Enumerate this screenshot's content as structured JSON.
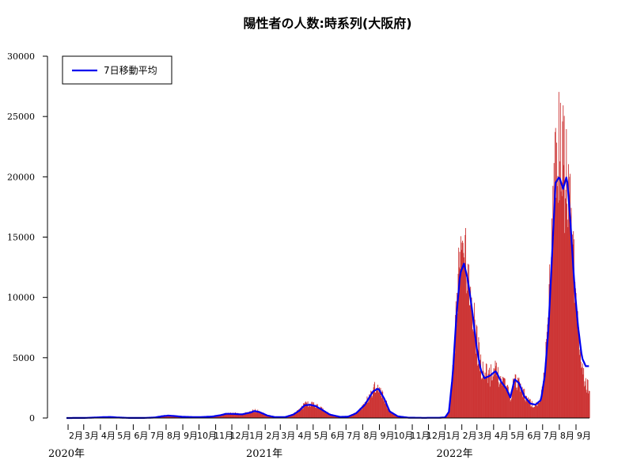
{
  "chart_data": {
    "type": "bar",
    "title": "陽性者の人数:時系列(大阪府)",
    "xlabel": "",
    "ylabel": "",
    "ylim": [
      0,
      30000
    ],
    "yticks": [
      0,
      5000,
      10000,
      15000,
      20000,
      25000,
      30000
    ],
    "x_range": [
      "2020-01-29",
      "2022-09-26"
    ],
    "month_ticks": [
      "2月",
      "3月",
      "4月",
      "5月",
      "6月",
      "7月",
      "8月",
      "9月",
      "10月",
      "11月",
      "12月",
      "1月",
      "2月",
      "3月",
      "4月",
      "5月",
      "6月",
      "7月",
      "8月",
      "9月",
      "10月",
      "11月",
      "12月",
      "1月",
      "2月",
      "3月",
      "4月",
      "5月",
      "6月",
      "7月",
      "8月",
      "9月"
    ],
    "year_labels": [
      "2020年",
      "2021年",
      "2022年"
    ],
    "grid": false,
    "legend": {
      "placement": "top-left",
      "entries": [
        "7日移動平均"
      ]
    },
    "colors": {
      "bars": "#cc3333",
      "average_line": "#0000ee"
    },
    "series": [
      {
        "name": "",
        "kind": "daily-bars",
        "points": [
          [
            "2020-01-29",
            0
          ],
          [
            "2020-03-01",
            20
          ],
          [
            "2020-04-10",
            80
          ],
          [
            "2020-04-20",
            90
          ],
          [
            "2020-05-05",
            40
          ],
          [
            "2020-05-25",
            5
          ],
          [
            "2020-06-20",
            5
          ],
          [
            "2020-07-10",
            40
          ],
          [
            "2020-07-25",
            160
          ],
          [
            "2020-08-05",
            230
          ],
          [
            "2020-08-15",
            180
          ],
          [
            "2020-09-01",
            110
          ],
          [
            "2020-10-01",
            80
          ],
          [
            "2020-10-25",
            130
          ],
          [
            "2020-11-10",
            250
          ],
          [
            "2020-11-20",
            400
          ],
          [
            "2020-12-05",
            380
          ],
          [
            "2020-12-20",
            330
          ],
          [
            "2021-01-05",
            500
          ],
          [
            "2021-01-12",
            650
          ],
          [
            "2021-01-22",
            520
          ],
          [
            "2021-02-05",
            210
          ],
          [
            "2021-02-20",
            70
          ],
          [
            "2021-03-10",
            80
          ],
          [
            "2021-03-25",
            300
          ],
          [
            "2021-04-05",
            650
          ],
          [
            "2021-04-15",
            1150
          ],
          [
            "2021-04-25",
            1200
          ],
          [
            "2021-05-05",
            1100
          ],
          [
            "2021-05-15",
            800
          ],
          [
            "2021-06-01",
            300
          ],
          [
            "2021-06-20",
            90
          ],
          [
            "2021-07-05",
            120
          ],
          [
            "2021-07-20",
            420
          ],
          [
            "2021-08-05",
            1200
          ],
          [
            "2021-08-20",
            2400
          ],
          [
            "2021-08-30",
            2600
          ],
          [
            "2021-09-10",
            1700
          ],
          [
            "2021-09-20",
            600
          ],
          [
            "2021-10-05",
            150
          ],
          [
            "2021-10-25",
            30
          ],
          [
            "2021-11-20",
            15
          ],
          [
            "2021-12-20",
            20
          ],
          [
            "2022-01-01",
            60
          ],
          [
            "2022-01-08",
            600
          ],
          [
            "2022-01-15",
            4000
          ],
          [
            "2022-01-22",
            9500
          ],
          [
            "2022-01-29",
            13500
          ],
          [
            "2022-02-05",
            14000
          ],
          [
            "2022-02-12",
            11500
          ],
          [
            "2022-02-20",
            9500
          ],
          [
            "2022-02-28",
            6500
          ],
          [
            "2022-03-08",
            4500
          ],
          [
            "2022-03-15",
            3800
          ],
          [
            "2022-03-25",
            3600
          ],
          [
            "2022-04-05",
            4000
          ],
          [
            "2022-04-15",
            3200
          ],
          [
            "2022-04-25",
            2600
          ],
          [
            "2022-05-02",
            1800
          ],
          [
            "2022-05-10",
            3300
          ],
          [
            "2022-05-18",
            3000
          ],
          [
            "2022-05-28",
            2000
          ],
          [
            "2022-06-08",
            1300
          ],
          [
            "2022-06-18",
            1100
          ],
          [
            "2022-06-28",
            1600
          ],
          [
            "2022-07-05",
            4000
          ],
          [
            "2022-07-12",
            8500
          ],
          [
            "2022-07-18",
            14500
          ],
          [
            "2022-07-25",
            22500
          ],
          [
            "2022-08-01",
            23000
          ],
          [
            "2022-08-08",
            21500
          ],
          [
            "2022-08-15",
            20500
          ],
          [
            "2022-08-22",
            17000
          ],
          [
            "2022-08-29",
            12500
          ],
          [
            "2022-09-05",
            7000
          ],
          [
            "2022-09-12",
            4200
          ],
          [
            "2022-09-19",
            3000
          ],
          [
            "2022-09-24",
            2600
          ]
        ]
      },
      {
        "name": "7日移動平均",
        "kind": "line",
        "points": [
          [
            "2020-01-29",
            0
          ],
          [
            "2020-03-05",
            10
          ],
          [
            "2020-04-12",
            80
          ],
          [
            "2020-04-20",
            85
          ],
          [
            "2020-05-05",
            40
          ],
          [
            "2020-05-25",
            5
          ],
          [
            "2020-06-20",
            5
          ],
          [
            "2020-07-10",
            40
          ],
          [
            "2020-07-25",
            150
          ],
          [
            "2020-08-05",
            200
          ],
          [
            "2020-08-15",
            170
          ],
          [
            "2020-09-01",
            100
          ],
          [
            "2020-10-01",
            70
          ],
          [
            "2020-10-25",
            120
          ],
          [
            "2020-11-10",
            230
          ],
          [
            "2020-11-20",
            350
          ],
          [
            "2020-12-05",
            340
          ],
          [
            "2020-12-20",
            300
          ],
          [
            "2021-01-05",
            460
          ],
          [
            "2021-01-12",
            580
          ],
          [
            "2021-01-22",
            480
          ],
          [
            "2021-02-05",
            200
          ],
          [
            "2021-02-20",
            70
          ],
          [
            "2021-03-10",
            80
          ],
          [
            "2021-03-25",
            280
          ],
          [
            "2021-04-05",
            600
          ],
          [
            "2021-04-15",
            1050
          ],
          [
            "2021-04-25",
            1100
          ],
          [
            "2021-05-05",
            1000
          ],
          [
            "2021-05-15",
            750
          ],
          [
            "2021-06-01",
            280
          ],
          [
            "2021-06-20",
            90
          ],
          [
            "2021-07-05",
            110
          ],
          [
            "2021-07-20",
            400
          ],
          [
            "2021-08-05",
            1100
          ],
          [
            "2021-08-20",
            2200
          ],
          [
            "2021-08-30",
            2450
          ],
          [
            "2021-09-10",
            1600
          ],
          [
            "2021-09-20",
            550
          ],
          [
            "2021-10-05",
            140
          ],
          [
            "2021-10-25",
            30
          ],
          [
            "2021-11-20",
            15
          ],
          [
            "2021-12-20",
            20
          ],
          [
            "2022-01-01",
            50
          ],
          [
            "2022-01-08",
            500
          ],
          [
            "2022-01-15",
            3500
          ],
          [
            "2022-01-22",
            8500
          ],
          [
            "2022-01-29",
            12000
          ],
          [
            "2022-02-05",
            12800
          ],
          [
            "2022-02-12",
            11500
          ],
          [
            "2022-02-20",
            9000
          ],
          [
            "2022-02-28",
            6000
          ],
          [
            "2022-03-08",
            4000
          ],
          [
            "2022-03-15",
            3300
          ],
          [
            "2022-03-25",
            3500
          ],
          [
            "2022-04-05",
            3900
          ],
          [
            "2022-04-15",
            3000
          ],
          [
            "2022-04-25",
            2400
          ],
          [
            "2022-05-02",
            1700
          ],
          [
            "2022-05-10",
            3200
          ],
          [
            "2022-05-18",
            2900
          ],
          [
            "2022-05-28",
            1800
          ],
          [
            "2022-06-08",
            1200
          ],
          [
            "2022-06-18",
            1100
          ],
          [
            "2022-06-28",
            1500
          ],
          [
            "2022-07-05",
            3500
          ],
          [
            "2022-07-12",
            7500
          ],
          [
            "2022-07-18",
            13000
          ],
          [
            "2022-07-25",
            19500
          ],
          [
            "2022-08-01",
            20000
          ],
          [
            "2022-08-08",
            19000
          ],
          [
            "2022-08-15",
            20100
          ],
          [
            "2022-08-22",
            16000
          ],
          [
            "2022-08-29",
            11000
          ],
          [
            "2022-09-05",
            7500
          ],
          [
            "2022-09-12",
            5000
          ],
          [
            "2022-09-19",
            4300
          ],
          [
            "2022-09-24",
            4300
          ]
        ]
      }
    ]
  }
}
